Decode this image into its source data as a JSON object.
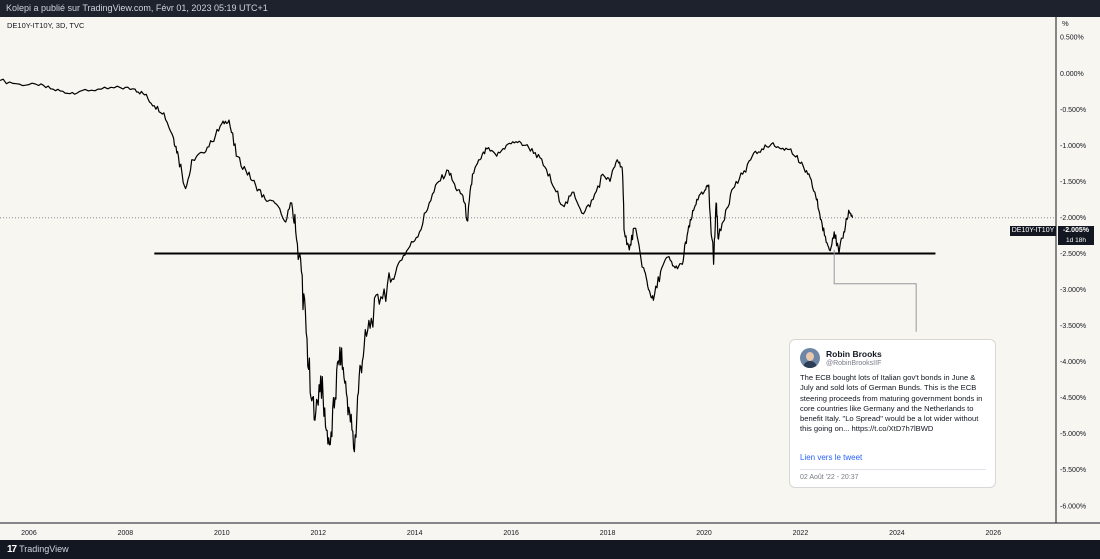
{
  "header": {
    "published_by": "Kolepi a publié sur TradingView.com, Févr 01, 2023 05:19 UTC+1"
  },
  "legend": {
    "symbol": "DE10Y-IT10Y, 3D, TVC"
  },
  "colors": {
    "background": "#f8f6f0",
    "line": "#000000",
    "frame": "#131722"
  },
  "price_label": {
    "symbol": "DE10Y-IT10Y",
    "value": "-2.005%",
    "countdown": "1d 18h"
  },
  "tweet": {
    "name": "Robin Brooks",
    "handle": "@RobinBrooksIIF",
    "text": "The ECB bought lots of Italian gov't bonds in June & July and sold lots of German Bunds. This is the ECB steering proceeds from maturing government bonds in core countries like Germany and the Netherlands to benefit Italy. \"Lo Spread\" would be a lot wider without this going on... https://t.co/XtD7h7lBWD",
    "link_label": "Lien vers le tweet",
    "date": "02 Août '22 - 20:37"
  },
  "footer": {
    "brand": "TradingView",
    "logo_icon": "tradingview-logo-icon"
  },
  "chart_data": {
    "type": "line",
    "ylabel": "%",
    "ylim": [
      -6.1,
      0.7
    ],
    "xlim": [
      2005.4,
      2027.3
    ],
    "y_ticks": [
      "0.500%",
      "0.000%",
      "-0.500%",
      "-1.000%",
      "-1.500%",
      "-2.000%",
      "-2.500%",
      "-3.000%",
      "-3.500%",
      "-4.000%",
      "-4.500%",
      "-5.000%",
      "-5.500%",
      "-6.000%"
    ],
    "x_ticks": [
      "2006",
      "2008",
      "2010",
      "2012",
      "2014",
      "2016",
      "2018",
      "2020",
      "2022",
      "2024",
      "2026"
    ],
    "series": [
      {
        "values": [
          [
            2005.4,
            -0.1
          ],
          [
            2005.8,
            -0.15
          ],
          [
            2006.2,
            -0.17
          ],
          [
            2006.5,
            -0.22
          ],
          [
            2006.8,
            -0.28
          ],
          [
            2007.1,
            -0.24
          ],
          [
            2007.5,
            -0.22
          ],
          [
            2007.9,
            -0.2
          ],
          [
            2008.2,
            -0.22
          ],
          [
            2008.4,
            -0.3
          ],
          [
            2008.6,
            -0.45
          ],
          [
            2008.8,
            -0.55
          ],
          [
            2009.0,
            -0.9
          ],
          [
            2009.1,
            -1.15
          ],
          [
            2009.25,
            -1.6
          ],
          [
            2009.4,
            -1.2
          ],
          [
            2009.6,
            -1.1
          ],
          [
            2009.8,
            -0.95
          ],
          [
            2010.0,
            -0.7
          ],
          [
            2010.15,
            -0.65
          ],
          [
            2010.3,
            -1.15
          ],
          [
            2010.5,
            -1.35
          ],
          [
            2010.7,
            -1.55
          ],
          [
            2010.9,
            -1.75
          ],
          [
            2011.1,
            -1.8
          ],
          [
            2011.3,
            -2.05
          ],
          [
            2011.45,
            -1.8
          ],
          [
            2011.55,
            -2.3
          ],
          [
            2011.65,
            -2.75
          ],
          [
            2011.75,
            -3.6
          ],
          [
            2011.85,
            -4.5
          ],
          [
            2011.95,
            -4.7
          ],
          [
            2012.05,
            -4.2
          ],
          [
            2012.15,
            -4.9
          ],
          [
            2012.25,
            -5.15
          ],
          [
            2012.35,
            -4.5
          ],
          [
            2012.45,
            -3.8
          ],
          [
            2012.55,
            -4.3
          ],
          [
            2012.65,
            -4.7
          ],
          [
            2012.75,
            -5.25
          ],
          [
            2012.85,
            -4.2
          ],
          [
            2012.95,
            -3.8
          ],
          [
            2013.1,
            -3.4
          ],
          [
            2013.3,
            -3.1
          ],
          [
            2013.5,
            -2.9
          ],
          [
            2013.7,
            -2.6
          ],
          [
            2013.9,
            -2.4
          ],
          [
            2014.1,
            -2.2
          ],
          [
            2014.3,
            -1.8
          ],
          [
            2014.5,
            -1.5
          ],
          [
            2014.7,
            -1.35
          ],
          [
            2014.85,
            -1.6
          ],
          [
            2015.0,
            -1.7
          ],
          [
            2015.1,
            -2.05
          ],
          [
            2015.2,
            -1.4
          ],
          [
            2015.35,
            -1.2
          ],
          [
            2015.5,
            -1.05
          ],
          [
            2015.7,
            -1.15
          ],
          [
            2015.9,
            -1.0
          ],
          [
            2016.1,
            -0.95
          ],
          [
            2016.3,
            -1.0
          ],
          [
            2016.5,
            -1.1
          ],
          [
            2016.7,
            -1.3
          ],
          [
            2016.9,
            -1.6
          ],
          [
            2017.1,
            -1.85
          ],
          [
            2017.3,
            -1.65
          ],
          [
            2017.5,
            -1.95
          ],
          [
            2017.7,
            -1.75
          ],
          [
            2017.9,
            -1.4
          ],
          [
            2018.05,
            -1.5
          ],
          [
            2018.2,
            -1.2
          ],
          [
            2018.3,
            -1.3
          ],
          [
            2018.35,
            -2.2
          ],
          [
            2018.45,
            -2.45
          ],
          [
            2018.55,
            -2.15
          ],
          [
            2018.75,
            -2.7
          ],
          [
            2018.85,
            -3.0
          ],
          [
            2018.95,
            -3.15
          ],
          [
            2019.1,
            -2.75
          ],
          [
            2019.25,
            -2.55
          ],
          [
            2019.4,
            -2.7
          ],
          [
            2019.55,
            -2.65
          ],
          [
            2019.65,
            -2.25
          ],
          [
            2019.75,
            -2.0
          ],
          [
            2019.85,
            -1.75
          ],
          [
            2020.0,
            -1.65
          ],
          [
            2020.1,
            -1.55
          ],
          [
            2020.2,
            -2.65
          ],
          [
            2020.25,
            -1.8
          ],
          [
            2020.3,
            -2.3
          ],
          [
            2020.45,
            -1.9
          ],
          [
            2020.6,
            -1.6
          ],
          [
            2020.8,
            -1.4
          ],
          [
            2021.0,
            -1.15
          ],
          [
            2021.2,
            -1.05
          ],
          [
            2021.4,
            -0.98
          ],
          [
            2021.6,
            -1.05
          ],
          [
            2021.8,
            -1.05
          ],
          [
            2022.0,
            -1.25
          ],
          [
            2022.15,
            -1.4
          ],
          [
            2022.3,
            -1.65
          ],
          [
            2022.4,
            -1.95
          ],
          [
            2022.5,
            -2.25
          ],
          [
            2022.6,
            -2.45
          ],
          [
            2022.7,
            -2.2
          ],
          [
            2022.8,
            -2.5
          ],
          [
            2022.9,
            -2.2
          ],
          [
            2023.0,
            -1.9
          ],
          [
            2023.08,
            -2.005
          ]
        ]
      }
    ],
    "annotations": [
      {
        "type": "horizontal_line",
        "y": -2.5,
        "x_start": 2008.6,
        "x_end": 2024.8
      },
      {
        "type": "callout_connector",
        "from": [
          2022.7,
          -2.45
        ],
        "to": [
          2024.4,
          -2.92
        ]
      }
    ]
  }
}
